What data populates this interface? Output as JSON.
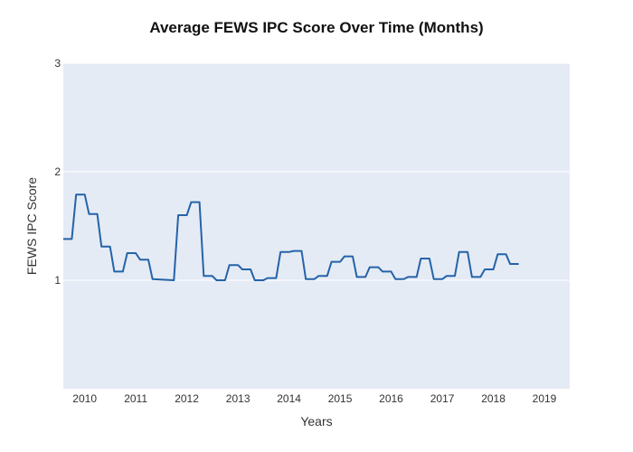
{
  "chart_data": {
    "type": "line",
    "title": "Average FEWS IPC Score Over Time (Months)",
    "xlabel": "Years",
    "ylabel": "FEWS IPC Score",
    "xlim": [
      "2009-08-01",
      "2019-07-01"
    ],
    "ylim": [
      0,
      3
    ],
    "y_ticks": [
      1,
      2,
      3
    ],
    "x_ticks": [
      "2010",
      "2011",
      "2012",
      "2013",
      "2014",
      "2015",
      "2016",
      "2017",
      "2018",
      "2019"
    ],
    "grid": true,
    "legend": "none",
    "colors": {
      "plot_bg": "#e5ebf5",
      "grid": "#ffffff",
      "line": "#2563a8"
    },
    "series": [
      {
        "values": [
          [
            "2009-08-01",
            1.38
          ],
          [
            "2009-10-01",
            1.38
          ],
          [
            "2009-11-01",
            1.79
          ],
          [
            "2010-01-01",
            1.79
          ],
          [
            "2010-02-01",
            1.61
          ],
          [
            "2010-04-01",
            1.61
          ],
          [
            "2010-05-01",
            1.31
          ],
          [
            "2010-07-01",
            1.31
          ],
          [
            "2010-08-01",
            1.08
          ],
          [
            "2010-10-01",
            1.08
          ],
          [
            "2010-11-01",
            1.25
          ],
          [
            "2011-01-01",
            1.25
          ],
          [
            "2011-02-01",
            1.19
          ],
          [
            "2011-04-01",
            1.19
          ],
          [
            "2011-05-01",
            1.01
          ],
          [
            "2011-10-01",
            1.0
          ],
          [
            "2011-11-01",
            1.6
          ],
          [
            "2012-01-01",
            1.6
          ],
          [
            "2012-02-01",
            1.72
          ],
          [
            "2012-04-01",
            1.72
          ],
          [
            "2012-05-01",
            1.04
          ],
          [
            "2012-07-01",
            1.04
          ],
          [
            "2012-08-01",
            1.0
          ],
          [
            "2012-10-01",
            1.0
          ],
          [
            "2012-11-01",
            1.14
          ],
          [
            "2013-01-01",
            1.14
          ],
          [
            "2013-02-01",
            1.1
          ],
          [
            "2013-04-01",
            1.1
          ],
          [
            "2013-05-01",
            1.0
          ],
          [
            "2013-07-01",
            1.0
          ],
          [
            "2013-08-01",
            1.02
          ],
          [
            "2013-10-01",
            1.02
          ],
          [
            "2013-11-01",
            1.26
          ],
          [
            "2014-01-01",
            1.26
          ],
          [
            "2014-02-01",
            1.27
          ],
          [
            "2014-04-01",
            1.27
          ],
          [
            "2014-05-01",
            1.01
          ],
          [
            "2014-07-01",
            1.01
          ],
          [
            "2014-08-01",
            1.04
          ],
          [
            "2014-10-01",
            1.04
          ],
          [
            "2014-11-01",
            1.17
          ],
          [
            "2015-01-01",
            1.17
          ],
          [
            "2015-02-01",
            1.22
          ],
          [
            "2015-04-01",
            1.22
          ],
          [
            "2015-05-01",
            1.03
          ],
          [
            "2015-07-01",
            1.03
          ],
          [
            "2015-08-01",
            1.12
          ],
          [
            "2015-10-01",
            1.12
          ],
          [
            "2015-11-01",
            1.08
          ],
          [
            "2016-01-01",
            1.08
          ],
          [
            "2016-02-01",
            1.01
          ],
          [
            "2016-04-01",
            1.01
          ],
          [
            "2016-05-01",
            1.03
          ],
          [
            "2016-07-01",
            1.03
          ],
          [
            "2016-08-01",
            1.2
          ],
          [
            "2016-10-01",
            1.2
          ],
          [
            "2016-11-01",
            1.01
          ],
          [
            "2017-01-01",
            1.01
          ],
          [
            "2017-02-01",
            1.04
          ],
          [
            "2017-04-01",
            1.04
          ],
          [
            "2017-05-01",
            1.26
          ],
          [
            "2017-07-01",
            1.26
          ],
          [
            "2017-08-01",
            1.03
          ],
          [
            "2017-10-01",
            1.03
          ],
          [
            "2017-11-01",
            1.1
          ],
          [
            "2018-01-01",
            1.1
          ],
          [
            "2018-02-01",
            1.24
          ],
          [
            "2018-04-01",
            1.24
          ],
          [
            "2018-05-01",
            1.15
          ],
          [
            "2018-07-01",
            1.15
          ]
        ]
      }
    ]
  }
}
